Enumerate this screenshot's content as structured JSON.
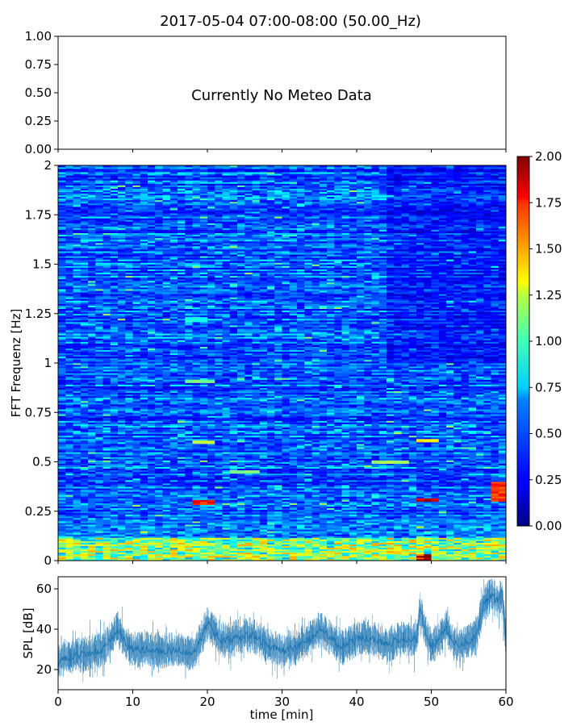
{
  "figure": {
    "title": "2017-05-04 07:00-08:00 (50.00_Hz)"
  },
  "chart_data": [
    {
      "panel": "meteo",
      "type": "line",
      "title": "",
      "xlabel": "",
      "ylabel": "",
      "ylim": [
        0,
        1
      ],
      "yticks": [
        "0.00",
        "0.25",
        "0.50",
        "0.75",
        "1.00"
      ],
      "annotation": "Currently No Meteo Data",
      "series": []
    },
    {
      "panel": "spectrogram",
      "type": "heatmap",
      "xlabel": "",
      "ylabel": "FFT Frequenz [Hz]",
      "xlim": [
        0,
        60
      ],
      "ylim": [
        0,
        2
      ],
      "yticks": [
        "0",
        "0.25",
        "0.5",
        "0.75",
        "1",
        "1.25",
        "1.5",
        "1.75",
        "2"
      ],
      "colormap": "jet",
      "colorbar": {
        "range": [
          0,
          2
        ],
        "ticks": [
          "0.00",
          "0.25",
          "0.50",
          "0.75",
          "1.00",
          "1.25",
          "1.50",
          "1.75",
          "2.00"
        ]
      },
      "features": [
        {
          "t": [
            0,
            60
          ],
          "f": [
            0,
            0.12
          ],
          "value": 1.1
        },
        {
          "t": [
            18,
            21
          ],
          "f": [
            0.28,
            0.31
          ],
          "value": 1.75
        },
        {
          "t": [
            48,
            51
          ],
          "f": [
            0.3,
            0.32
          ],
          "value": 1.9
        },
        {
          "t": [
            48,
            50
          ],
          "f": [
            0.0,
            0.03
          ],
          "value": 2.0
        },
        {
          "t": [
            58,
            60
          ],
          "f": [
            0.3,
            0.4
          ],
          "value": 1.7
        },
        {
          "t": [
            18,
            21
          ],
          "f": [
            0.59,
            0.61
          ],
          "value": 1.15
        },
        {
          "t": [
            48,
            51
          ],
          "f": [
            0.6,
            0.62
          ],
          "value": 1.3
        },
        {
          "t": [
            17,
            20
          ],
          "f": [
            1.21,
            1.23
          ],
          "value": 0.8
        },
        {
          "t": [
            17,
            21
          ],
          "f": [
            0.9,
            0.92
          ],
          "value": 1.0
        },
        {
          "t": [
            23,
            27
          ],
          "f": [
            0.44,
            0.46
          ],
          "value": 1.0
        },
        {
          "t": [
            42,
            47
          ],
          "f": [
            0.49,
            0.51
          ],
          "value": 1.1
        }
      ]
    },
    {
      "panel": "spl",
      "type": "line",
      "xlabel": "time [min]",
      "ylabel": "SPL [dB]",
      "xlim": [
        0,
        60
      ],
      "ylim": [
        10,
        66
      ],
      "xticks": [
        "0",
        "10",
        "20",
        "30",
        "40",
        "50",
        "60"
      ],
      "yticks": [
        "20",
        "40",
        "60"
      ],
      "color": "#1f77b4",
      "series": [
        {
          "x": [
            0,
            2,
            4,
            6,
            8,
            9,
            10,
            12,
            14,
            16,
            18,
            19,
            20,
            22,
            24,
            26,
            28,
            30,
            32,
            34,
            35,
            36,
            38,
            40,
            42,
            44,
            46,
            48,
            48.5,
            49,
            50,
            51,
            52,
            53,
            54,
            56,
            57,
            58,
            59,
            59.5,
            60
          ],
          "y": [
            24,
            27,
            28,
            30,
            40,
            34,
            30,
            30,
            29,
            30,
            28,
            34,
            43,
            34,
            36,
            37,
            32,
            29,
            31,
            36,
            40,
            37,
            31,
            35,
            36,
            32,
            35,
            35,
            50,
            42,
            31,
            35,
            41,
            33,
            32,
            36,
            52,
            57,
            54,
            58,
            34
          ]
        }
      ]
    }
  ]
}
